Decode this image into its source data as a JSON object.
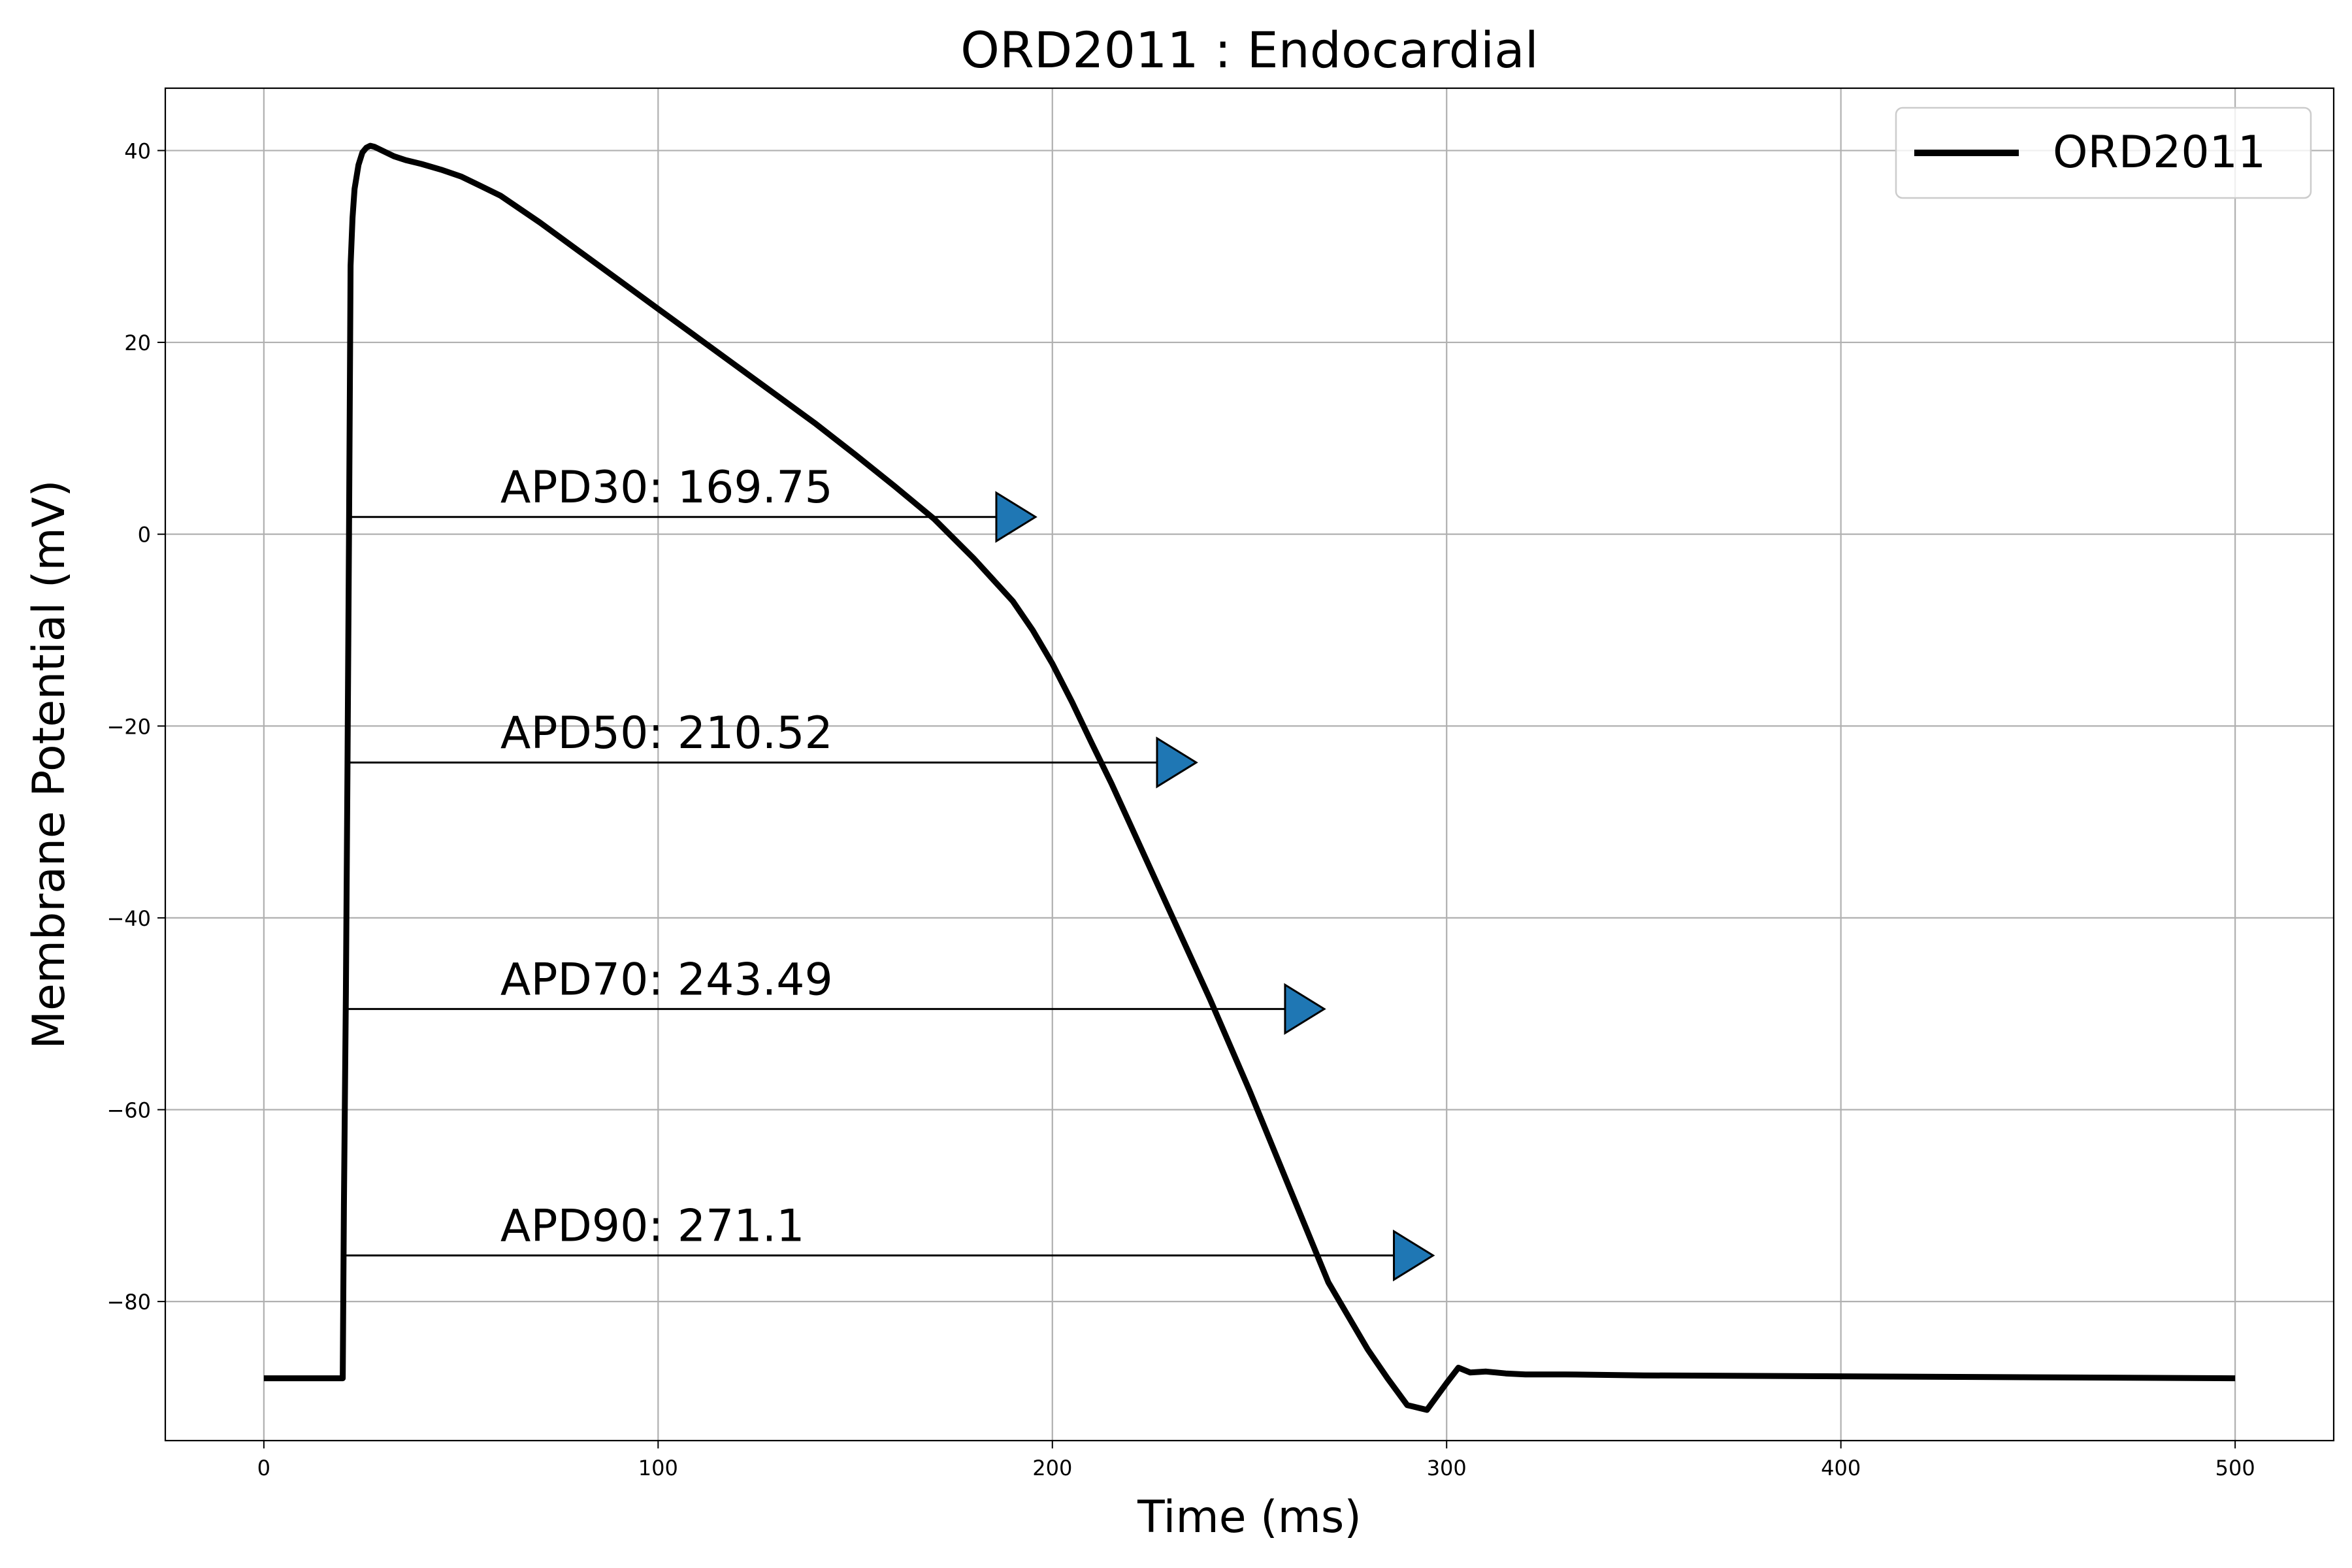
{
  "chart_data": {
    "type": "line",
    "title": "ORD2011 : Endocardial",
    "xlabel": "Time (ms)",
    "ylabel": "Membrane Potential (mV)",
    "xlim": [
      -25,
      525
    ],
    "ylim": [
      -94.5,
      46.5
    ],
    "xticks": [
      0,
      100,
      200,
      300,
      400,
      500
    ],
    "yticks": [
      -80,
      -60,
      -40,
      -20,
      0,
      20,
      40
    ],
    "grid": true,
    "legend_position": "top-right",
    "series": [
      {
        "name": "ORD2011",
        "color": "#000000",
        "x": [
          0,
          20,
          20.3,
          20.8,
          21.2,
          21.6,
          22,
          22.5,
          23,
          24,
          25,
          26,
          27,
          28,
          30,
          33,
          36,
          40,
          45,
          50,
          55,
          60,
          70,
          80,
          90,
          100,
          110,
          120,
          130,
          140,
          150,
          160,
          170,
          180,
          190,
          195,
          200,
          205,
          210,
          215,
          220,
          230,
          240,
          250,
          260,
          270,
          280,
          285,
          290,
          295,
          300,
          303,
          306,
          310,
          315,
          320,
          330,
          350,
          400,
          450,
          500
        ],
        "y": [
          -88,
          -88,
          -70,
          -48,
          -25,
          0,
          28,
          33,
          36,
          38.5,
          39.8,
          40.3,
          40.5,
          40.4,
          40,
          39.4,
          39,
          38.6,
          38,
          37.3,
          36.3,
          35.3,
          32.5,
          29.5,
          26.5,
          23.5,
          20.5,
          17.5,
          14.5,
          11.5,
          8.3,
          5,
          1.6,
          -2.5,
          -7,
          -10,
          -13.5,
          -17.5,
          -21.8,
          -26,
          -30.5,
          -39.5,
          -48.5,
          -58,
          -68,
          -78,
          -85,
          -88,
          -90.8,
          -91.3,
          -88.5,
          -86.9,
          -87.4,
          -87.3,
          -87.5,
          -87.6,
          -87.6,
          -87.7,
          -87.8,
          -87.9,
          -88
        ]
      }
    ],
    "annotations": [
      {
        "label": "APD30: 169.75",
        "x_start": 21,
        "x_end": 190.75,
        "y": 1.8
      },
      {
        "label": "APD50: 210.52",
        "x_start": 21,
        "x_end": 231.52,
        "y": -23.8
      },
      {
        "label": "APD70: 243.49",
        "x_start": 20.5,
        "x_end": 263.99,
        "y": -49.5
      },
      {
        "label": "APD90: 271.1",
        "x_start": 20.5,
        "x_end": 291.6,
        "y": -75.2
      }
    ],
    "marker_color": "#1f77b4"
  }
}
